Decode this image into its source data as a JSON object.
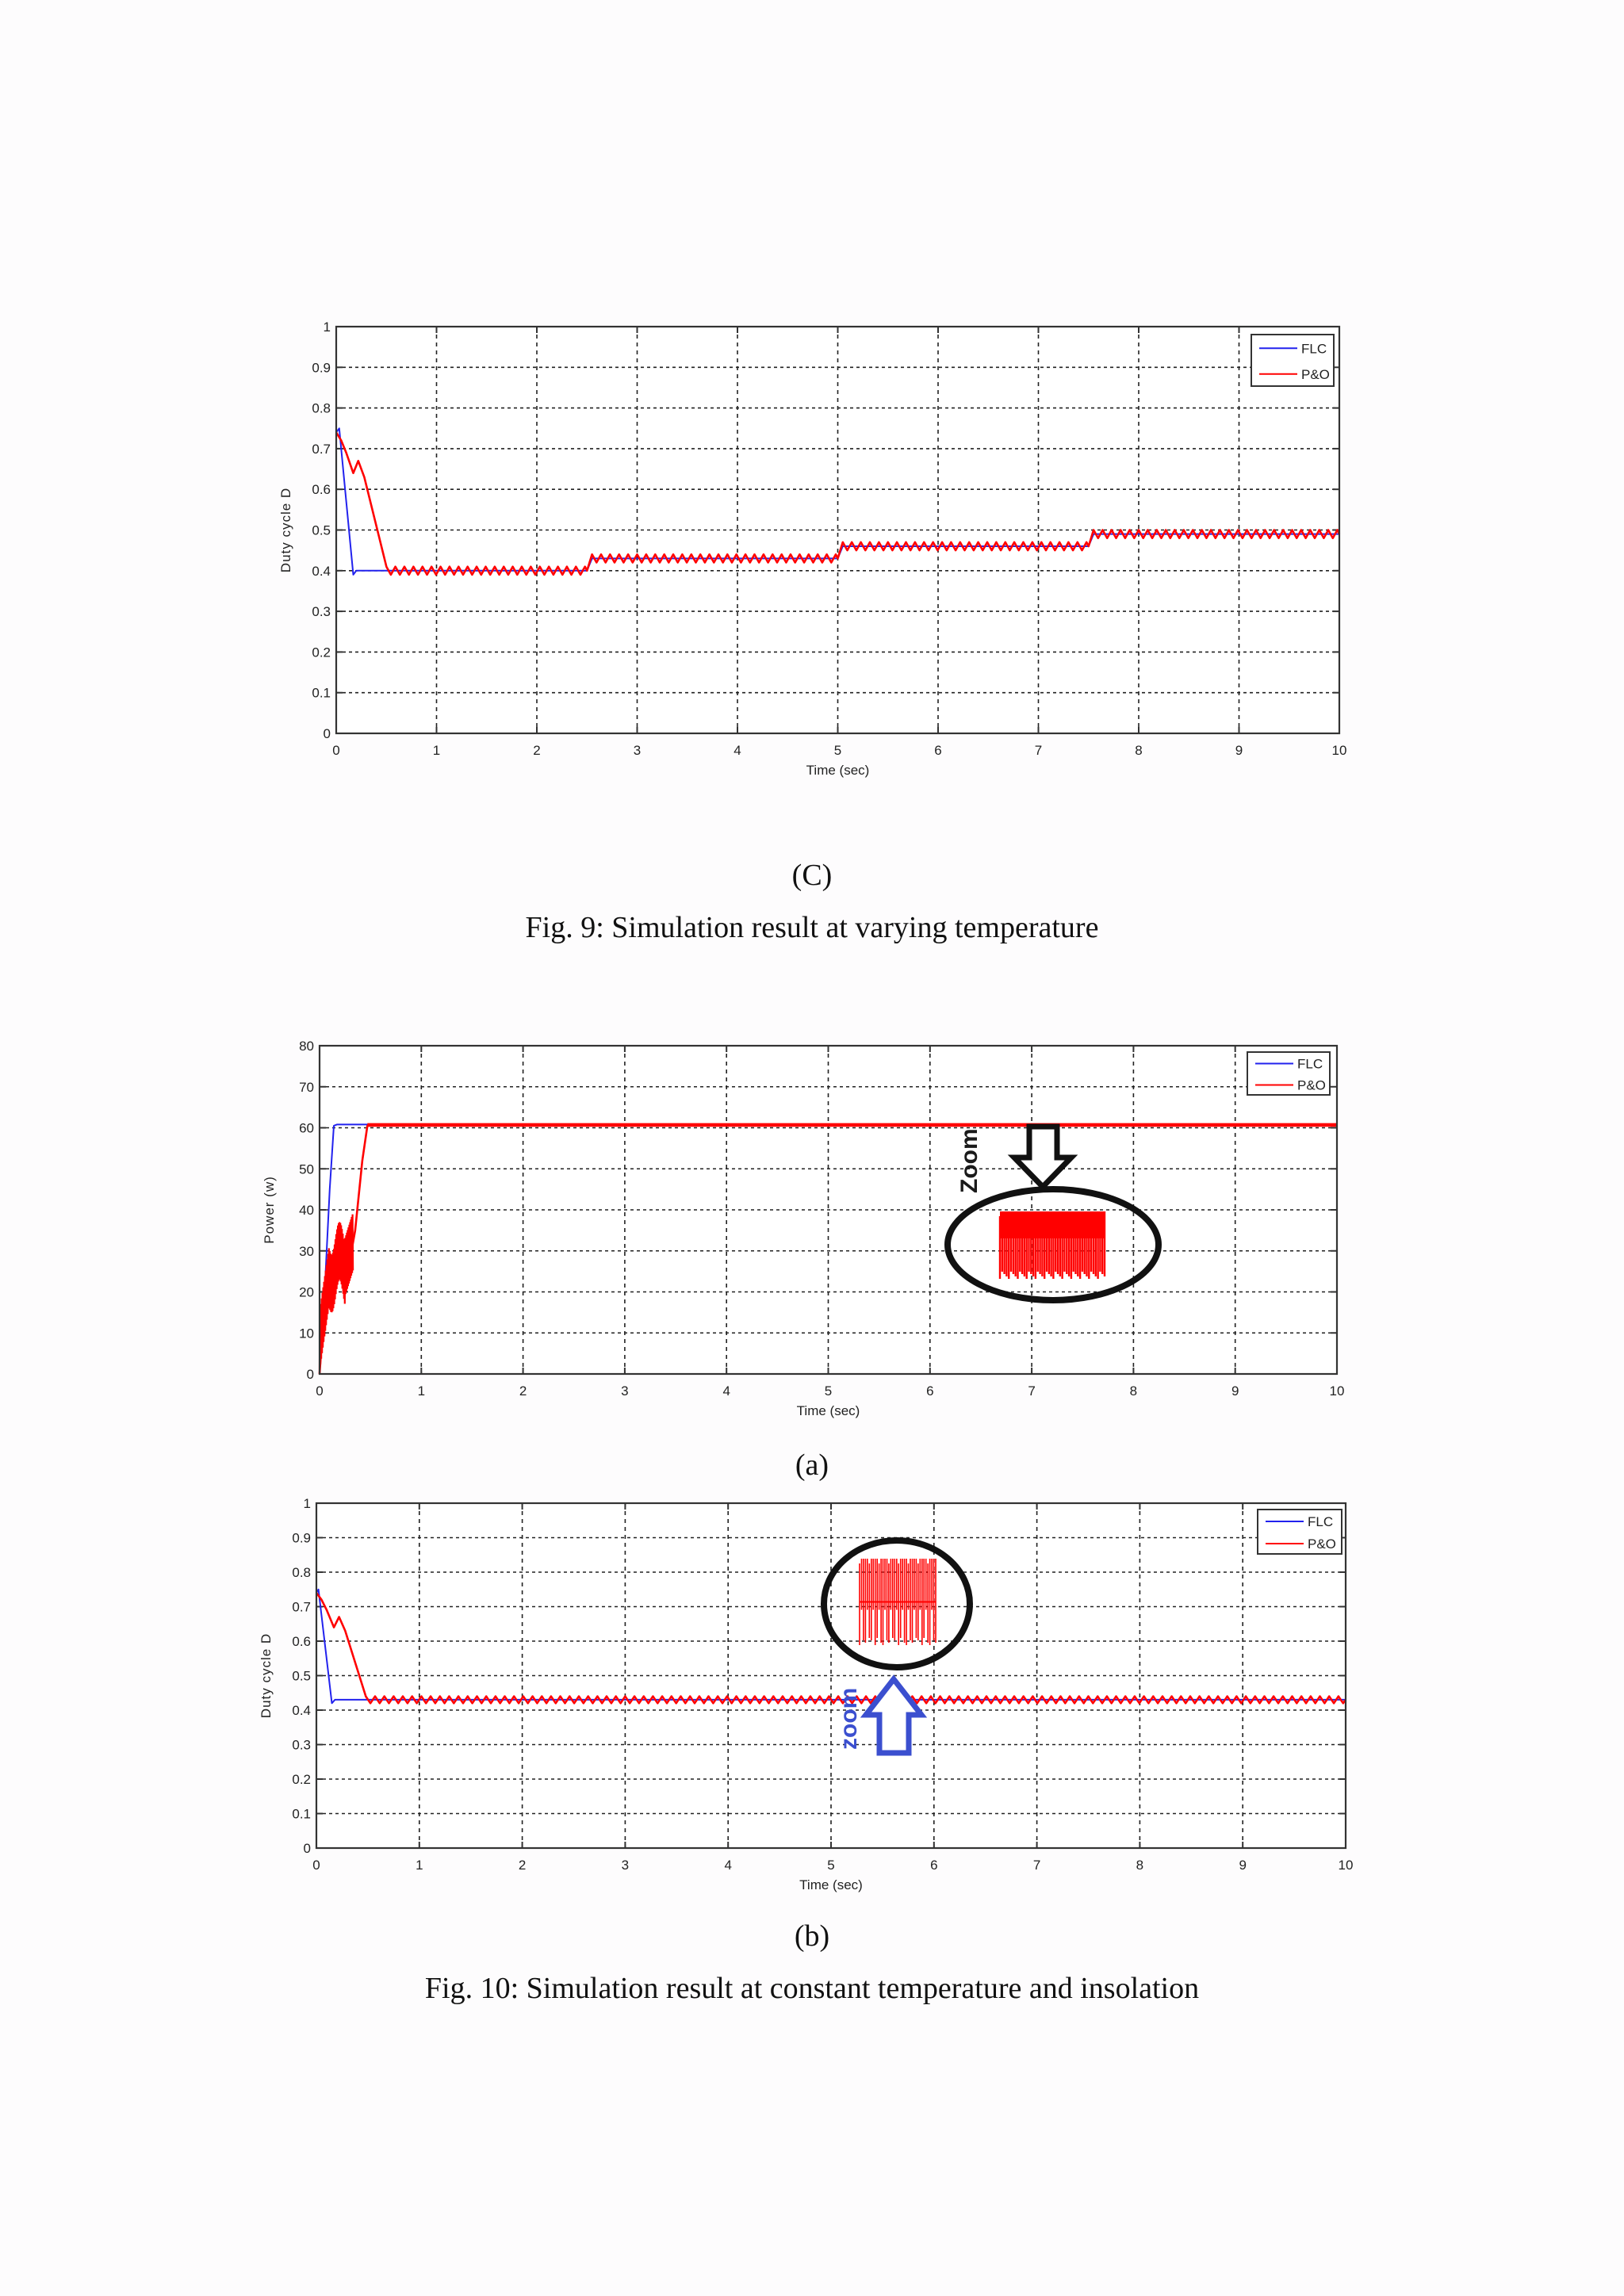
{
  "colors": {
    "flc": "#2222ee",
    "po": "#ff0000",
    "axis": "#333333",
    "grid": "#222222",
    "annot_black": "#111111",
    "annot_blue": "#3b4fcf"
  },
  "fig9": {
    "sub_label": "(C)",
    "caption": "Fig. 9: Simulation result at varying temperature"
  },
  "fig10": {
    "sub_label_a": "(a)",
    "sub_label_b": "(b)",
    "caption": "Fig. 10: Simulation result at constant temperature and insolation",
    "annotation_a": "Zoom",
    "annotation_b": "zoom"
  },
  "chart_data": [
    {
      "id": "fig9c",
      "type": "line",
      "title": "",
      "xlabel": "Time (sec)",
      "ylabel": "Duty cycle D",
      "xlim": [
        0,
        10
      ],
      "ylim": [
        0,
        1
      ],
      "xticks": [
        0,
        1,
        2,
        3,
        4,
        5,
        6,
        7,
        8,
        9,
        10
      ],
      "yticks": [
        0,
        0.1,
        0.2,
        0.3,
        0.4,
        0.5,
        0.6,
        0.7,
        0.8,
        0.9,
        1
      ],
      "grid": true,
      "legend": {
        "position": "upper right",
        "entries": [
          "FLC",
          "P&O"
        ]
      },
      "series": [
        {
          "name": "FLC",
          "color": "#2222ee",
          "x": [
            0,
            0.03,
            0.17,
            0.2,
            0.25,
            2.5,
            2.55,
            5.0,
            5.05,
            7.5,
            7.55,
            10
          ],
          "y": [
            0.74,
            0.75,
            0.39,
            0.4,
            0.4,
            0.4,
            0.43,
            0.43,
            0.46,
            0.46,
            0.49,
            0.49
          ]
        },
        {
          "name": "P&O",
          "color": "#ff0000",
          "oscillation_amplitude": 0.01,
          "x": [
            0,
            0.05,
            0.1,
            0.17,
            0.22,
            0.28,
            0.5,
            2.5,
            2.55,
            5.0,
            5.05,
            7.5,
            7.55,
            10
          ],
          "y": [
            0.74,
            0.72,
            0.69,
            0.64,
            0.67,
            0.63,
            0.4,
            0.4,
            0.43,
            0.43,
            0.46,
            0.46,
            0.49,
            0.49
          ]
        }
      ]
    },
    {
      "id": "fig10a",
      "type": "line",
      "title": "",
      "xlabel": "Time (sec)",
      "ylabel": "Power (w)",
      "xlim": [
        0,
        10
      ],
      "ylim": [
        0,
        80
      ],
      "xticks": [
        0,
        1,
        2,
        3,
        4,
        5,
        6,
        7,
        8,
        9,
        10
      ],
      "yticks": [
        0,
        10,
        20,
        30,
        40,
        50,
        60,
        70,
        80
      ],
      "grid": true,
      "legend": {
        "position": "upper right",
        "entries": [
          "FLC",
          "P&O"
        ]
      },
      "series": [
        {
          "name": "FLC",
          "color": "#2222ee",
          "x": [
            0,
            0.05,
            0.1,
            0.14,
            0.17,
            10
          ],
          "y": [
            0,
            20,
            45,
            60.5,
            60.8,
            60.8
          ]
        },
        {
          "name": "P&O",
          "color": "#ff0000",
          "x": [
            0,
            0.05,
            0.1,
            0.15,
            0.2,
            0.25,
            0.3,
            0.35,
            0.42,
            0.47,
            10
          ],
          "y": [
            0,
            18,
            25,
            30,
            28,
            22,
            28,
            35,
            52,
            60.5,
            60.5
          ]
        }
      ]
    },
    {
      "id": "fig10b",
      "type": "line",
      "title": "",
      "xlabel": "Time (sec)",
      "ylabel": "Duty cycle D",
      "xlim": [
        0,
        10
      ],
      "ylim": [
        0,
        1
      ],
      "xticks": [
        0,
        1,
        2,
        3,
        4,
        5,
        6,
        7,
        8,
        9,
        10
      ],
      "yticks": [
        0,
        0.1,
        0.2,
        0.3,
        0.4,
        0.5,
        0.6,
        0.7,
        0.8,
        0.9,
        1
      ],
      "grid": true,
      "legend": {
        "position": "upper right",
        "entries": [
          "FLC",
          "P&O"
        ]
      },
      "series": [
        {
          "name": "FLC",
          "color": "#2222ee",
          "x": [
            0,
            0.02,
            0.15,
            0.18,
            10
          ],
          "y": [
            0.74,
            0.75,
            0.42,
            0.43,
            0.43
          ]
        },
        {
          "name": "P&O",
          "color": "#ff0000",
          "oscillation_amplitude": 0.01,
          "x": [
            0,
            0.05,
            0.1,
            0.17,
            0.22,
            0.28,
            0.48,
            10
          ],
          "y": [
            0.74,
            0.72,
            0.69,
            0.64,
            0.67,
            0.63,
            0.43,
            0.43
          ]
        }
      ]
    }
  ]
}
